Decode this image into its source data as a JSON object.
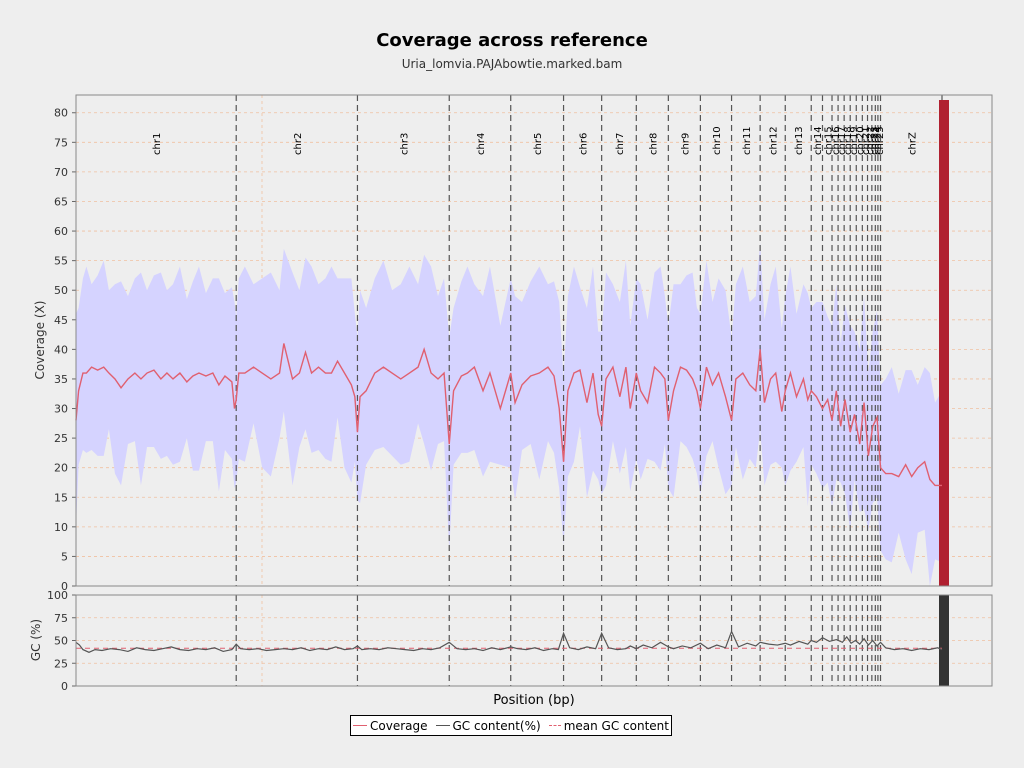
{
  "title": "Coverage across reference",
  "subtitle": "Uria_lomvia.PAJAbowtie.marked.bam",
  "legend": {
    "coverage": "Coverage",
    "gc": "GC content(%)",
    "mean_gc": "mean GC content"
  },
  "colors": {
    "band": "#d5d3ff",
    "coverage_line": "#e06070",
    "gc_line": "#555555",
    "mean_gc_line": "#e06070",
    "chrom_line": "#555555",
    "grid": "#f0c0a0",
    "small_contigs_fill": "#b02030"
  },
  "chart_data": [
    {
      "type": "line",
      "title": "Coverage across reference",
      "subtitle": "Uria_lomvia.PAJAbowtie.marked.bam",
      "xlabel": "Position (bp)",
      "ylabel": "Coverage (X)",
      "ylim": [
        0,
        83
      ],
      "yticks": [
        0,
        5,
        10,
        15,
        20,
        25,
        30,
        35,
        40,
        45,
        50,
        55,
        60,
        65,
        70,
        75,
        80
      ],
      "xlim": [
        0,
        1000
      ],
      "grid": true,
      "chromosomes": [
        {
          "name": "chr1",
          "pos": 185
        },
        {
          "name": "chr2",
          "pos": 325
        },
        {
          "name": "chr3",
          "pos": 431
        },
        {
          "name": "chr4",
          "pos": 502
        },
        {
          "name": "chr5",
          "pos": 563
        },
        {
          "name": "chr6",
          "pos": 607
        },
        {
          "name": "chr7",
          "pos": 647
        },
        {
          "name": "chr8",
          "pos": 684
        },
        {
          "name": "chr9",
          "pos": 721
        },
        {
          "name": "chr10",
          "pos": 757
        },
        {
          "name": "chr11",
          "pos": 790
        },
        {
          "name": "chr12",
          "pos": 819
        },
        {
          "name": "chr13",
          "pos": 849
        },
        {
          "name": "chr14",
          "pos": 862
        },
        {
          "name": "chr15",
          "pos": 873
        },
        {
          "name": "chr16",
          "pos": 880
        },
        {
          "name": "chr17",
          "pos": 887
        },
        {
          "name": "chr18",
          "pos": 894
        },
        {
          "name": "chr19",
          "pos": 901
        },
        {
          "name": "chr20",
          "pos": 908
        },
        {
          "name": "chr21",
          "pos": 914
        },
        {
          "name": "chr22",
          "pos": 919
        },
        {
          "name": "chr23",
          "pos": 923
        },
        {
          "name": "chr24",
          "pos": 926
        },
        {
          "name": "chr25",
          "pos": 929
        },
        {
          "name": "chrZ",
          "pos": 1000
        }
      ],
      "series": [
        {
          "name": "Coverage",
          "x": [
            0,
            3,
            8,
            12,
            18,
            25,
            32,
            38,
            45,
            52,
            60,
            68,
            75,
            82,
            90,
            98,
            105,
            112,
            120,
            128,
            135,
            142,
            150,
            158,
            165,
            172,
            180,
            183,
            185,
            188,
            195,
            205,
            215,
            225,
            235,
            240,
            250,
            258,
            265,
            272,
            280,
            288,
            295,
            302,
            310,
            318,
            322,
            325,
            328,
            335,
            345,
            355,
            365,
            375,
            385,
            395,
            402,
            410,
            418,
            425,
            431,
            436,
            445,
            452,
            460,
            470,
            478,
            490,
            502,
            507,
            515,
            525,
            535,
            545,
            552,
            558,
            563,
            568,
            575,
            582,
            590,
            597,
            603,
            607,
            612,
            620,
            628,
            635,
            640,
            647,
            652,
            660,
            668,
            675,
            680,
            684,
            690,
            698,
            705,
            712,
            717,
            721,
            728,
            735,
            742,
            750,
            757,
            762,
            770,
            778,
            785,
            790,
            795,
            802,
            808,
            815,
            819,
            825,
            832,
            840,
            845,
            849,
            855,
            862,
            868,
            873,
            878,
            883,
            888,
            894,
            899,
            905,
            910,
            915,
            920,
            925,
            929,
            935,
            942,
            950,
            958,
            965,
            972,
            980,
            986,
            992,
            1000
          ],
          "values": [
            28,
            33,
            36,
            36,
            37,
            36.5,
            37,
            36,
            35,
            33.5,
            35,
            36,
            35,
            36,
            36.5,
            35,
            36,
            35,
            36,
            34.5,
            35.5,
            36,
            35.5,
            36,
            34,
            35.5,
            34.5,
            30,
            31.5,
            36,
            36,
            37,
            36,
            35,
            36,
            41,
            35,
            36,
            39.5,
            36,
            37,
            36,
            36,
            38,
            36,
            34,
            32,
            26,
            32,
            33,
            36,
            37,
            36,
            35,
            36,
            37,
            40,
            36,
            35,
            36,
            24,
            33,
            35.5,
            36,
            37,
            33,
            36,
            30,
            36,
            31,
            34,
            35.5,
            36,
            37,
            35.5,
            30,
            21,
            33,
            36,
            36.5,
            31,
            36,
            29,
            27,
            35,
            37,
            32,
            37,
            30,
            36,
            33,
            31,
            37,
            36,
            35,
            28,
            33,
            37,
            36.5,
            35,
            33,
            30,
            37,
            34,
            36,
            32,
            28,
            35,
            36,
            34,
            33,
            40,
            31,
            35,
            36,
            29.5,
            33,
            36,
            32,
            35,
            31.5,
            33,
            32,
            30,
            31.5,
            28,
            33,
            27,
            31.5,
            26,
            29,
            24,
            31,
            22,
            27,
            28.5,
            20,
            19,
            19,
            18.5,
            20.5,
            18.5,
            20,
            21,
            18,
            17,
            17
          ]
        }
      ]
    },
    {
      "type": "line",
      "xlabel": "Position (bp)",
      "ylabel": "GC (%)",
      "ylim": [
        0,
        100
      ],
      "yticks": [
        0,
        25,
        50,
        75,
        100
      ],
      "mean_gc": 41.5,
      "series": [
        {
          "name": "GC content(%)",
          "x": [
            0,
            4,
            8,
            15,
            22,
            30,
            40,
            50,
            60,
            70,
            80,
            90,
            100,
            110,
            120,
            130,
            140,
            150,
            160,
            170,
            180,
            185,
            190,
            200,
            210,
            220,
            230,
            240,
            250,
            260,
            270,
            280,
            290,
            300,
            310,
            320,
            325,
            330,
            340,
            350,
            360,
            370,
            380,
            390,
            400,
            410,
            420,
            431,
            440,
            450,
            460,
            470,
            480,
            490,
            502,
            510,
            520,
            530,
            540,
            550,
            557,
            563,
            570,
            580,
            590,
            600,
            607,
            615,
            625,
            635,
            640,
            647,
            655,
            665,
            675,
            684,
            690,
            700,
            710,
            721,
            730,
            740,
            750,
            757,
            765,
            775,
            785,
            790,
            800,
            810,
            819,
            825,
            835,
            845,
            849,
            855,
            862,
            870,
            878,
            885,
            890,
            895,
            900,
            905,
            910,
            915,
            920,
            925,
            929,
            935,
            945,
            955,
            965,
            975,
            985,
            995,
            1000
          ],
          "values": [
            48,
            45,
            40,
            37,
            40,
            39,
            41,
            40,
            38,
            42,
            40,
            39,
            41,
            43,
            40,
            39,
            41,
            40,
            42,
            38,
            40,
            46,
            41,
            40,
            41,
            39,
            40,
            41,
            40,
            42,
            39,
            41,
            40,
            43,
            40,
            41,
            44,
            40,
            41,
            40,
            42,
            41,
            40,
            39,
            41,
            40,
            42,
            48,
            41,
            40,
            41,
            39,
            42,
            40,
            43,
            41,
            40,
            42,
            39,
            41,
            40,
            58,
            42,
            40,
            43,
            41,
            58,
            42,
            40,
            41,
            44,
            41,
            45,
            42,
            48,
            43,
            41,
            44,
            42,
            47,
            41,
            45,
            42,
            60,
            43,
            47,
            44,
            48,
            46,
            45,
            47,
            45,
            49,
            46,
            50,
            48,
            53,
            49,
            51,
            48,
            54,
            47,
            50,
            46,
            52,
            45,
            50,
            44,
            48,
            42,
            40,
            41,
            39,
            41,
            40,
            42,
            40
          ]
        }
      ]
    }
  ]
}
